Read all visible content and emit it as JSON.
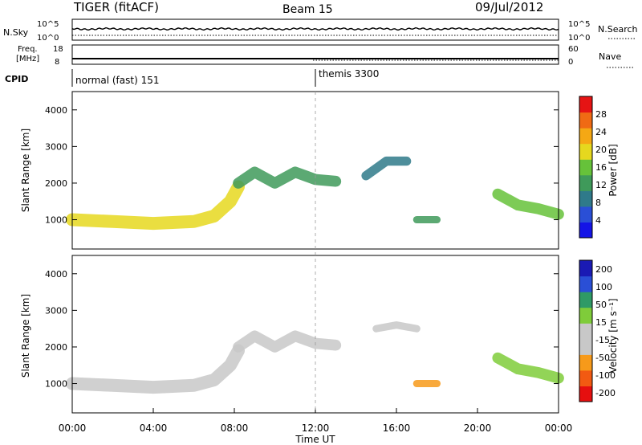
{
  "header": {
    "radar": "TIGER (fitACF)",
    "beam": "Beam 15",
    "date": "09/Jul/2012"
  },
  "nsky_panel": {
    "left_label": "N.Sky",
    "right_label": "N.Search",
    "left_ticks": [
      "10^5",
      "10^0"
    ],
    "right_ticks": [
      "10^5",
      "10^0"
    ]
  },
  "freq_panel": {
    "left_label_1": "Freq.",
    "left_label_2": "[MHz]",
    "right_label": "Nave",
    "left_ticks": [
      "18",
      "8"
    ],
    "right_ticks": [
      "60",
      "0"
    ]
  },
  "cpid_panel": {
    "label": "CPID",
    "modes": [
      {
        "name": "normal (fast) 151",
        "start_hour": 0
      },
      {
        "name": "themis 3300",
        "start_hour": 12
      }
    ]
  },
  "chart_data": [
    {
      "type": "heatmap",
      "name": "power",
      "ylabel": "Slant Range [km]",
      "xlabel": "",
      "ylim": [
        200,
        4500
      ],
      "y_ticks": [
        "1000",
        "2000",
        "3000",
        "4000"
      ],
      "colorbar_label": "Power [dB]",
      "colorbar_ticks": [
        "4",
        "8",
        "12",
        "16",
        "20",
        "24",
        "28"
      ],
      "colorbar_range": [
        0,
        32
      ],
      "echo_regions": [
        {
          "x": [
            0,
            2,
            4,
            6,
            7,
            7.8,
            8.2
          ],
          "y": [
            1000,
            950,
            900,
            950,
            1100,
            1500,
            1900
          ],
          "width_km": 350,
          "value": 20
        },
        {
          "x": [
            8.2,
            9,
            10,
            11,
            12,
            13
          ],
          "y": [
            2000,
            2300,
            2000,
            2300,
            2100,
            2050
          ],
          "width_km": 300,
          "value": 14
        },
        {
          "x": [
            14.5,
            15.5,
            16.5
          ],
          "y": [
            2200,
            2600,
            2600
          ],
          "width_km": 250,
          "value": 10
        },
        {
          "x": [
            17,
            18
          ],
          "y": [
            1000,
            1000
          ],
          "width_km": 200,
          "value": 14
        },
        {
          "x": [
            21,
            22,
            23,
            24
          ],
          "y": [
            1700,
            1400,
            1300,
            1150
          ],
          "width_km": 300,
          "value": 16
        }
      ]
    },
    {
      "type": "heatmap",
      "name": "velocity",
      "ylabel": "Slant Range [km]",
      "xlabel": "Time UT",
      "ylim": [
        200,
        4500
      ],
      "y_ticks": [
        "1000",
        "2000",
        "3000",
        "4000"
      ],
      "x_ticks": [
        "00:00",
        "04:00",
        "08:00",
        "12:00",
        "16:00",
        "20:00",
        "00:00"
      ],
      "xlim_hours": [
        0,
        24
      ],
      "colorbar_label": "Velocity [m s⁻¹]",
      "colorbar_ticks": [
        "200",
        "100",
        "50",
        "15",
        "-15",
        "-50",
        "-100",
        "-200"
      ],
      "colorbar_range": [
        -250,
        250
      ],
      "echo_regions": [
        {
          "x": [
            0,
            2,
            4,
            6,
            7,
            7.8,
            8.2
          ],
          "y": [
            1000,
            950,
            900,
            950,
            1100,
            1500,
            1900
          ],
          "width_km": 350,
          "value": 0
        },
        {
          "x": [
            8.2,
            9,
            10,
            11,
            12,
            13
          ],
          "y": [
            2000,
            2300,
            2000,
            2300,
            2100,
            2050
          ],
          "width_km": 300,
          "value": 0
        },
        {
          "x": [
            15,
            16,
            17
          ],
          "y": [
            2500,
            2600,
            2500
          ],
          "width_km": 200,
          "value": -40
        },
        {
          "x": [
            17,
            18
          ],
          "y": [
            1000,
            1000
          ],
          "width_km": 200,
          "value": -120
        },
        {
          "x": [
            21,
            22,
            23,
            24
          ],
          "y": [
            1700,
            1400,
            1300,
            1150
          ],
          "width_km": 300,
          "value": 30
        }
      ]
    }
  ]
}
